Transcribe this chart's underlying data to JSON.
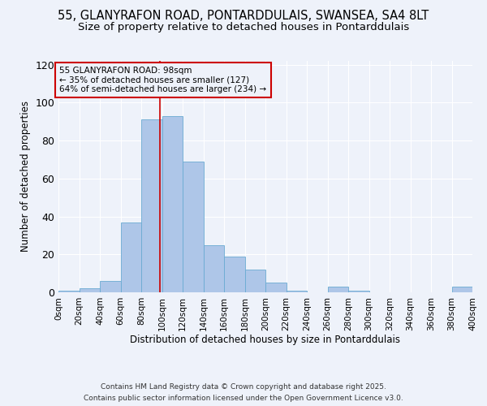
{
  "title1": "55, GLANYRAFON ROAD, PONTARDDULAIS, SWANSEA, SA4 8LT",
  "title2": "Size of property relative to detached houses in Pontarddulais",
  "xlabel": "Distribution of detached houses by size in Pontarddulais",
  "ylabel": "Number of detached properties",
  "bin_edges": [
    0,
    20,
    40,
    60,
    80,
    100,
    120,
    140,
    160,
    180,
    200,
    220,
    240,
    260,
    280,
    300,
    320,
    340,
    360,
    380,
    400
  ],
  "counts": [
    1,
    2,
    6,
    37,
    91,
    93,
    69,
    25,
    19,
    12,
    5,
    1,
    0,
    3,
    1,
    0,
    0,
    0,
    0,
    3
  ],
  "bar_color": "#aec6e8",
  "bar_edgecolor": "#6aabd2",
  "property_size": 98,
  "red_line_color": "#cc0000",
  "annotation_line1": "55 GLANYRAFON ROAD: 98sqm",
  "annotation_line2": "← 35% of detached houses are smaller (127)",
  "annotation_line3": "64% of semi-detached houses are larger (234) →",
  "annotation_box_edgecolor": "#cc0000",
  "background_color": "#eef2fa",
  "ylim": [
    0,
    122
  ],
  "yticks": [
    0,
    20,
    40,
    60,
    80,
    100,
    120
  ],
  "footer1": "Contains HM Land Registry data © Crown copyright and database right 2025.",
  "footer2": "Contains public sector information licensed under the Open Government Licence v3.0.",
  "title_fontsize": 10.5,
  "subtitle_fontsize": 9.5,
  "tick_label_fontsize": 7.5,
  "axis_label_fontsize": 8.5,
  "footer_fontsize": 6.5
}
